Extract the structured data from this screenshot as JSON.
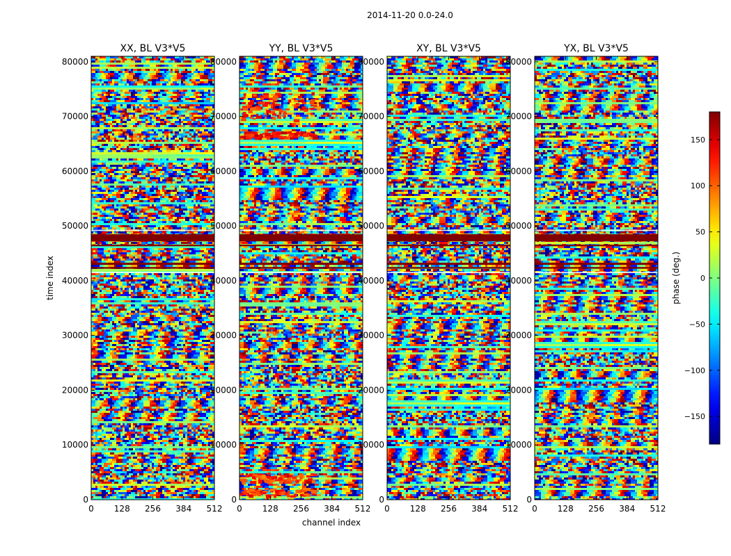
{
  "chart_data": {
    "type": "heatmap",
    "suptitle": "2014-11-20 0.0-24.0",
    "xlabel": "channel index",
    "ylabel": "time index",
    "x_range": [
      0,
      512
    ],
    "y_range": [
      0,
      81000
    ],
    "x_ticks": [
      "0",
      "128",
      "256",
      "384",
      "512"
    ],
    "y_ticks": [
      "0",
      "10000",
      "20000",
      "30000",
      "40000",
      "50000",
      "60000",
      "70000",
      "80000"
    ],
    "colormap": "jet",
    "panels": [
      {
        "title": "XX, BL V3*V5",
        "id": "xx"
      },
      {
        "title": "YY, BL V3*V5",
        "id": "yy"
      },
      {
        "title": "XY, BL V3*V5",
        "id": "xy"
      },
      {
        "title": "YX, BL V3*V5",
        "id": "yx"
      }
    ],
    "colorbar": {
      "label": "phase (deg.)",
      "range": [
        -180,
        180
      ],
      "ticks": [
        "150",
        "100",
        "50",
        "0",
        "−50",
        "−100",
        "−150"
      ],
      "tick_values": [
        150,
        100,
        50,
        0,
        -50,
        -100,
        -150
      ]
    }
  }
}
